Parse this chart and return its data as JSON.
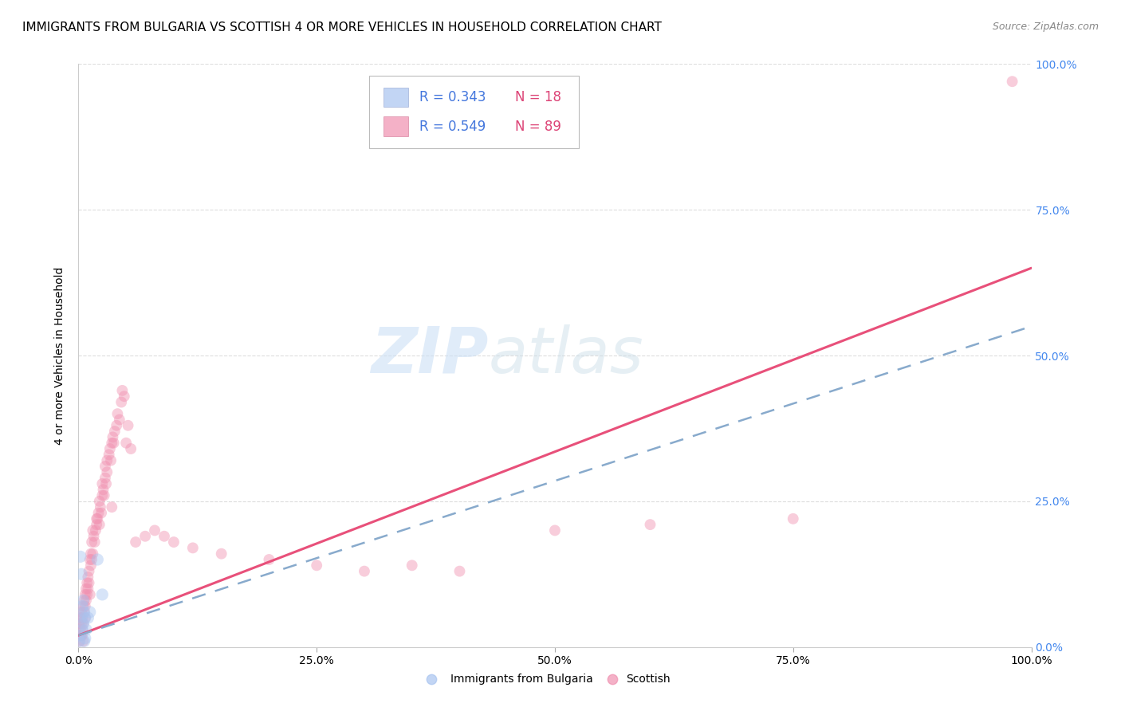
{
  "title": "IMMIGRANTS FROM BULGARIA VS SCOTTISH 4 OR MORE VEHICLES IN HOUSEHOLD CORRELATION CHART",
  "source": "Source: ZipAtlas.com",
  "ylabel": "4 or more Vehicles in Household",
  "xlim": [
    0,
    1.0
  ],
  "ylim": [
    0,
    1.0
  ],
  "color_bulgaria": "#a8c4f0",
  "color_scottish": "#f090b0",
  "color_trendline_bulgaria": "#88aacc",
  "color_trendline_scottish": "#e8507a",
  "background_color": "#ffffff",
  "grid_color": "#dddddd",
  "title_fontsize": 11,
  "axis_label_fontsize": 10,
  "tick_fontsize": 10,
  "scatter_size_bulgaria": 120,
  "scatter_size_scottish": 100,
  "scatter_alpha": 0.45,
  "bulgaria_x": [
    0.001,
    0.002,
    0.002,
    0.003,
    0.003,
    0.004,
    0.004,
    0.005,
    0.005,
    0.006,
    0.006,
    0.007,
    0.007,
    0.008,
    0.01,
    0.012,
    0.02,
    0.025
  ],
  "bulgaria_y": [
    0.01,
    0.02,
    0.155,
    0.125,
    0.05,
    0.07,
    0.03,
    0.08,
    0.04,
    0.06,
    0.01,
    0.05,
    0.015,
    0.03,
    0.05,
    0.06,
    0.15,
    0.09
  ],
  "scottish_x": [
    0.001,
    0.001,
    0.001,
    0.002,
    0.002,
    0.002,
    0.003,
    0.003,
    0.003,
    0.004,
    0.004,
    0.004,
    0.005,
    0.005,
    0.005,
    0.006,
    0.006,
    0.007,
    0.007,
    0.007,
    0.008,
    0.008,
    0.009,
    0.009,
    0.01,
    0.01,
    0.011,
    0.011,
    0.012,
    0.012,
    0.013,
    0.013,
    0.014,
    0.014,
    0.015,
    0.015,
    0.016,
    0.017,
    0.018,
    0.019,
    0.019,
    0.02,
    0.021,
    0.022,
    0.022,
    0.023,
    0.024,
    0.025,
    0.025,
    0.026,
    0.027,
    0.028,
    0.028,
    0.029,
    0.03,
    0.03,
    0.032,
    0.033,
    0.034,
    0.035,
    0.035,
    0.036,
    0.037,
    0.038,
    0.04,
    0.041,
    0.043,
    0.045,
    0.046,
    0.048,
    0.05,
    0.052,
    0.055,
    0.06,
    0.07,
    0.08,
    0.09,
    0.1,
    0.12,
    0.15,
    0.2,
    0.25,
    0.3,
    0.35,
    0.4,
    0.5,
    0.6,
    0.75,
    0.98
  ],
  "scottish_y": [
    0.01,
    0.02,
    0.04,
    0.03,
    0.05,
    0.02,
    0.04,
    0.06,
    0.02,
    0.03,
    0.05,
    0.02,
    0.04,
    0.07,
    0.01,
    0.06,
    0.08,
    0.07,
    0.09,
    0.05,
    0.08,
    0.1,
    0.09,
    0.11,
    0.1,
    0.12,
    0.11,
    0.13,
    0.09,
    0.15,
    0.14,
    0.16,
    0.15,
    0.18,
    0.16,
    0.2,
    0.19,
    0.18,
    0.2,
    0.21,
    0.22,
    0.22,
    0.23,
    0.21,
    0.25,
    0.24,
    0.23,
    0.26,
    0.28,
    0.27,
    0.26,
    0.29,
    0.31,
    0.28,
    0.3,
    0.32,
    0.33,
    0.34,
    0.32,
    0.35,
    0.24,
    0.36,
    0.35,
    0.37,
    0.38,
    0.4,
    0.39,
    0.42,
    0.44,
    0.43,
    0.35,
    0.38,
    0.34,
    0.18,
    0.19,
    0.2,
    0.19,
    0.18,
    0.17,
    0.16,
    0.15,
    0.14,
    0.13,
    0.14,
    0.13,
    0.2,
    0.21,
    0.22,
    0.97
  ],
  "trendline_scottish": [
    0.02,
    0.65
  ],
  "trendline_bulgaria": [
    0.02,
    0.55
  ]
}
